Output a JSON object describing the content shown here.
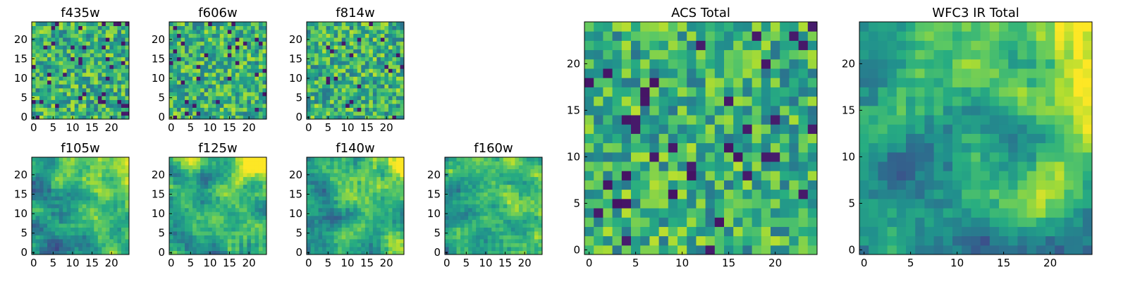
{
  "figure": {
    "description_free": true
  },
  "colormap": {
    "name": "viridis",
    "stops": [
      "#440154",
      "#472c7a",
      "#3b518b",
      "#2c718e",
      "#21908d",
      "#27ad81",
      "#5cc863",
      "#aadc32",
      "#fde725"
    ]
  },
  "chart_data": [
    {
      "type": "heatmap",
      "title": "f435w",
      "grid": 25,
      "xticks": [
        0,
        5,
        10,
        15,
        20
      ],
      "yticks": [
        0,
        5,
        10,
        15,
        20
      ],
      "xlim": [
        0,
        24
      ],
      "ylim": [
        0,
        24
      ],
      "pattern": "noise",
      "seed": 1
    },
    {
      "type": "heatmap",
      "title": "f606w",
      "grid": 25,
      "xticks": [
        0,
        5,
        10,
        15,
        20
      ],
      "yticks": [
        0,
        5,
        10,
        15,
        20
      ],
      "xlim": [
        0,
        24
      ],
      "ylim": [
        0,
        24
      ],
      "pattern": "noise",
      "seed": 2
    },
    {
      "type": "heatmap",
      "title": "f814w",
      "grid": 25,
      "xticks": [
        0,
        5,
        10,
        15,
        20
      ],
      "yticks": [
        0,
        5,
        10,
        15,
        20
      ],
      "xlim": [
        0,
        24
      ],
      "ylim": [
        0,
        24
      ],
      "pattern": "noise",
      "seed": 3
    },
    {
      "type": "heatmap",
      "title": "f105w",
      "grid": 25,
      "xticks": [
        0,
        5,
        10,
        15,
        20
      ],
      "yticks": [
        0,
        5,
        10,
        15,
        20
      ],
      "xlim": [
        0,
        24
      ],
      "ylim": [
        0,
        24
      ],
      "pattern": "smooth",
      "seed": 4
    },
    {
      "type": "heatmap",
      "title": "f125w",
      "grid": 25,
      "xticks": [
        0,
        5,
        10,
        15,
        20
      ],
      "yticks": [
        0,
        5,
        10,
        15,
        20
      ],
      "xlim": [
        0,
        24
      ],
      "ylim": [
        0,
        24
      ],
      "pattern": "smooth",
      "seed": 5
    },
    {
      "type": "heatmap",
      "title": "f140w",
      "grid": 25,
      "xticks": [
        0,
        5,
        10,
        15,
        20
      ],
      "yticks": [
        0,
        5,
        10,
        15,
        20
      ],
      "xlim": [
        0,
        24
      ],
      "ylim": [
        0,
        24
      ],
      "pattern": "smooth",
      "seed": 6
    },
    {
      "type": "heatmap",
      "title": "f160w",
      "grid": 25,
      "xticks": [
        0,
        5,
        10,
        15,
        20
      ],
      "yticks": [
        0,
        5,
        10,
        15,
        20
      ],
      "xlim": [
        0,
        24
      ],
      "ylim": [
        0,
        24
      ],
      "pattern": "smooth",
      "seed": 7
    },
    {
      "type": "heatmap",
      "title": "ACS Total",
      "grid": 25,
      "xticks": [
        0,
        5,
        10,
        15,
        20
      ],
      "yticks": [
        0,
        5,
        10,
        15,
        20
      ],
      "xlim": [
        0,
        24
      ],
      "ylim": [
        0,
        24
      ],
      "pattern": "noise",
      "seed": 8
    },
    {
      "type": "heatmap",
      "title": "WFC3 IR Total",
      "grid": 25,
      "xticks": [
        0,
        5,
        10,
        15,
        20
      ],
      "yticks": [
        0,
        5,
        10,
        15,
        20
      ],
      "xlim": [
        0,
        24
      ],
      "ylim": [
        0,
        24
      ],
      "pattern": "smooth",
      "seed": 9
    }
  ]
}
